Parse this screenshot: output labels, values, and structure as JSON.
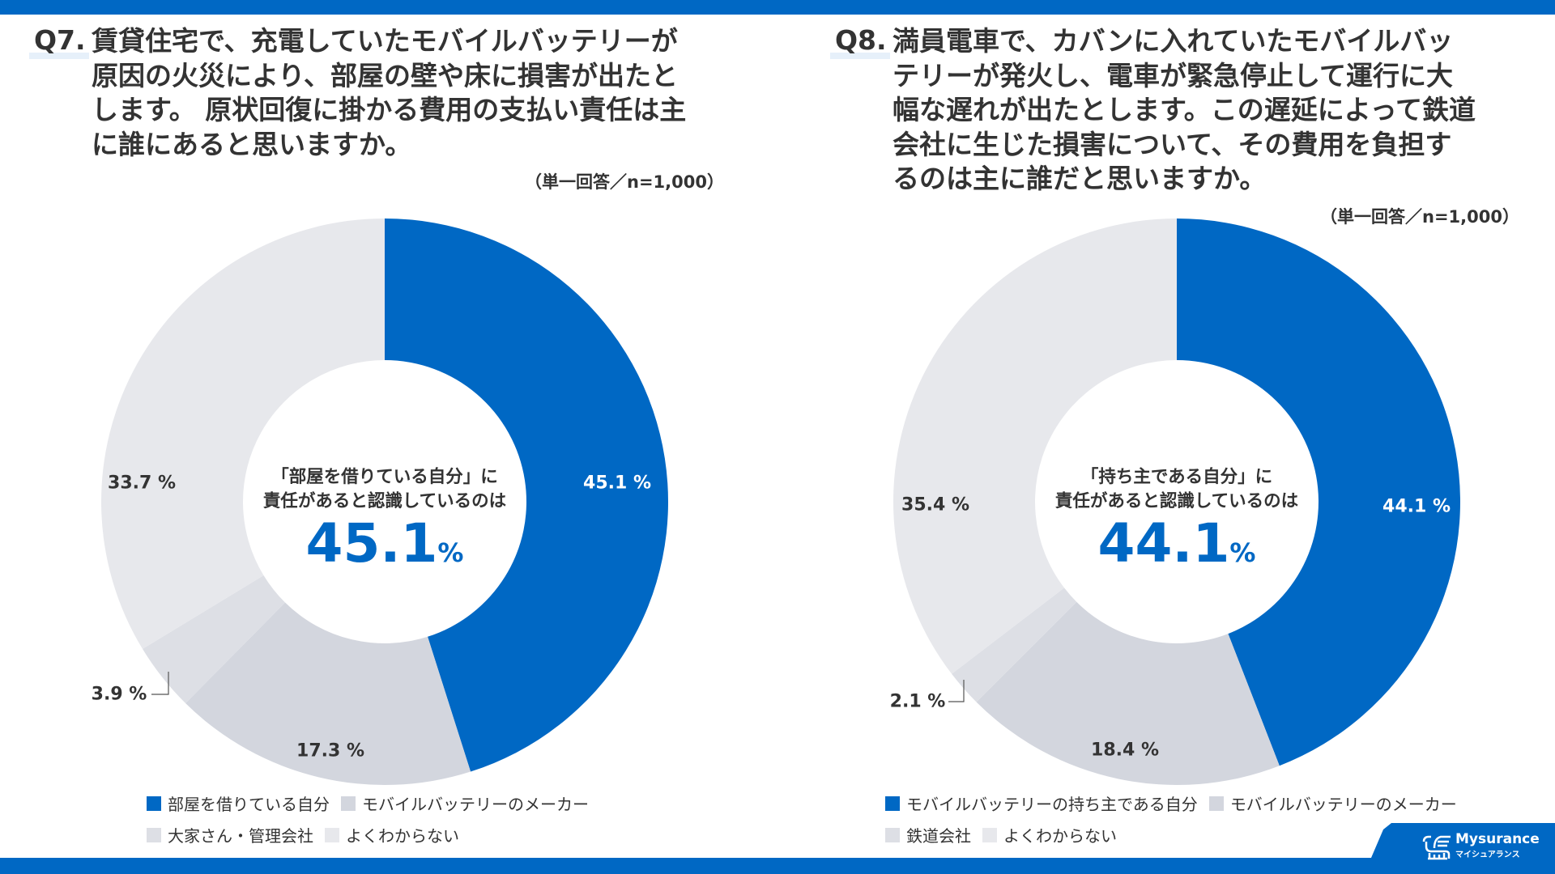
{
  "q7": {
    "number": "Q7.",
    "question_lines": [
      "賃貸住宅で、充電していたモバイルバッテリーが",
      "原因の火災により、部屋の壁や床に損害が出たと",
      "します。 原状回復に掛かる費用の支払い責任は主",
      "に誰にあると思いますか。"
    ],
    "note": "（単一回答／n=1,000）",
    "center_line1": "「部屋を借りている自分」に",
    "center_line2": "責任があると認識しているのは",
    "center_value": "45.1",
    "center_unit": "%"
  },
  "q8": {
    "number": "Q8.",
    "question_lines": [
      "満員電車で、カバンに入れていたモバイルバッ",
      "テリーが発火し、電車が緊急停止して運行に大",
      "幅な遅れが出たとします。この遅延によって鉄道",
      "会社に生じた損害について、その費用を負担す",
      "るのは主に誰だと思いますか。"
    ],
    "note": "（単一回答／n=1,000）",
    "center_line1": "「持ち主である自分」に",
    "center_line2": "責任があると認識しているのは",
    "center_value": "44.1",
    "center_unit": "%"
  },
  "chart_data": [
    {
      "type": "pie",
      "donut": true,
      "categories": [
        "部屋を借りている自分",
        "モバイルバッテリーのメーカー",
        "大家さん・管理会社",
        "よくわからない"
      ],
      "values": [
        45.1,
        17.3,
        3.9,
        33.7
      ],
      "labels": [
        "45.1 %",
        "17.3 %",
        "3.9 %",
        "33.7 %"
      ],
      "colors": [
        "#0068c4",
        "#d3d6de",
        "#dddfe5",
        "#e7e8ec"
      ],
      "unit": "%",
      "legend": "bottom"
    },
    {
      "type": "pie",
      "donut": true,
      "categories": [
        "モバイルバッテリーの持ち主である自分",
        "モバイルバッテリーのメーカー",
        "鉄道会社",
        "よくわからない"
      ],
      "values": [
        44.1,
        18.4,
        2.1,
        35.4
      ],
      "labels": [
        "44.1 %",
        "18.4 %",
        "2.1 %",
        "35.4 %"
      ],
      "colors": [
        "#0068c4",
        "#d3d6de",
        "#dddfe5",
        "#e7e8ec"
      ],
      "unit": "%",
      "legend": "bottom"
    }
  ],
  "brand": {
    "name_en": "Mysurance",
    "name_jp": "マイシュアランス",
    "color": "#0068c4"
  }
}
